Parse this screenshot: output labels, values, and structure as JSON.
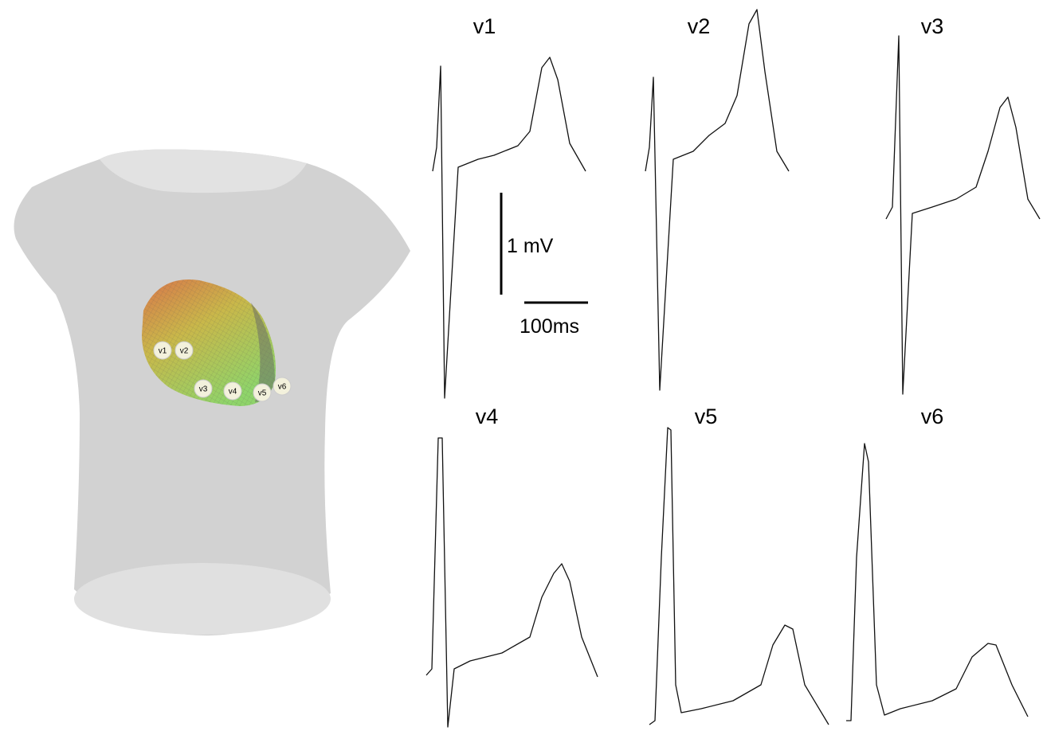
{
  "panels": [
    "v1",
    "v2",
    "v3",
    "v4",
    "v5",
    "v6"
  ],
  "electrodes": [
    "v1",
    "v2",
    "v3",
    "v4",
    "v5",
    "v6"
  ],
  "scale_bar": {
    "voltage": "1 mV",
    "time": "100ms"
  }
}
